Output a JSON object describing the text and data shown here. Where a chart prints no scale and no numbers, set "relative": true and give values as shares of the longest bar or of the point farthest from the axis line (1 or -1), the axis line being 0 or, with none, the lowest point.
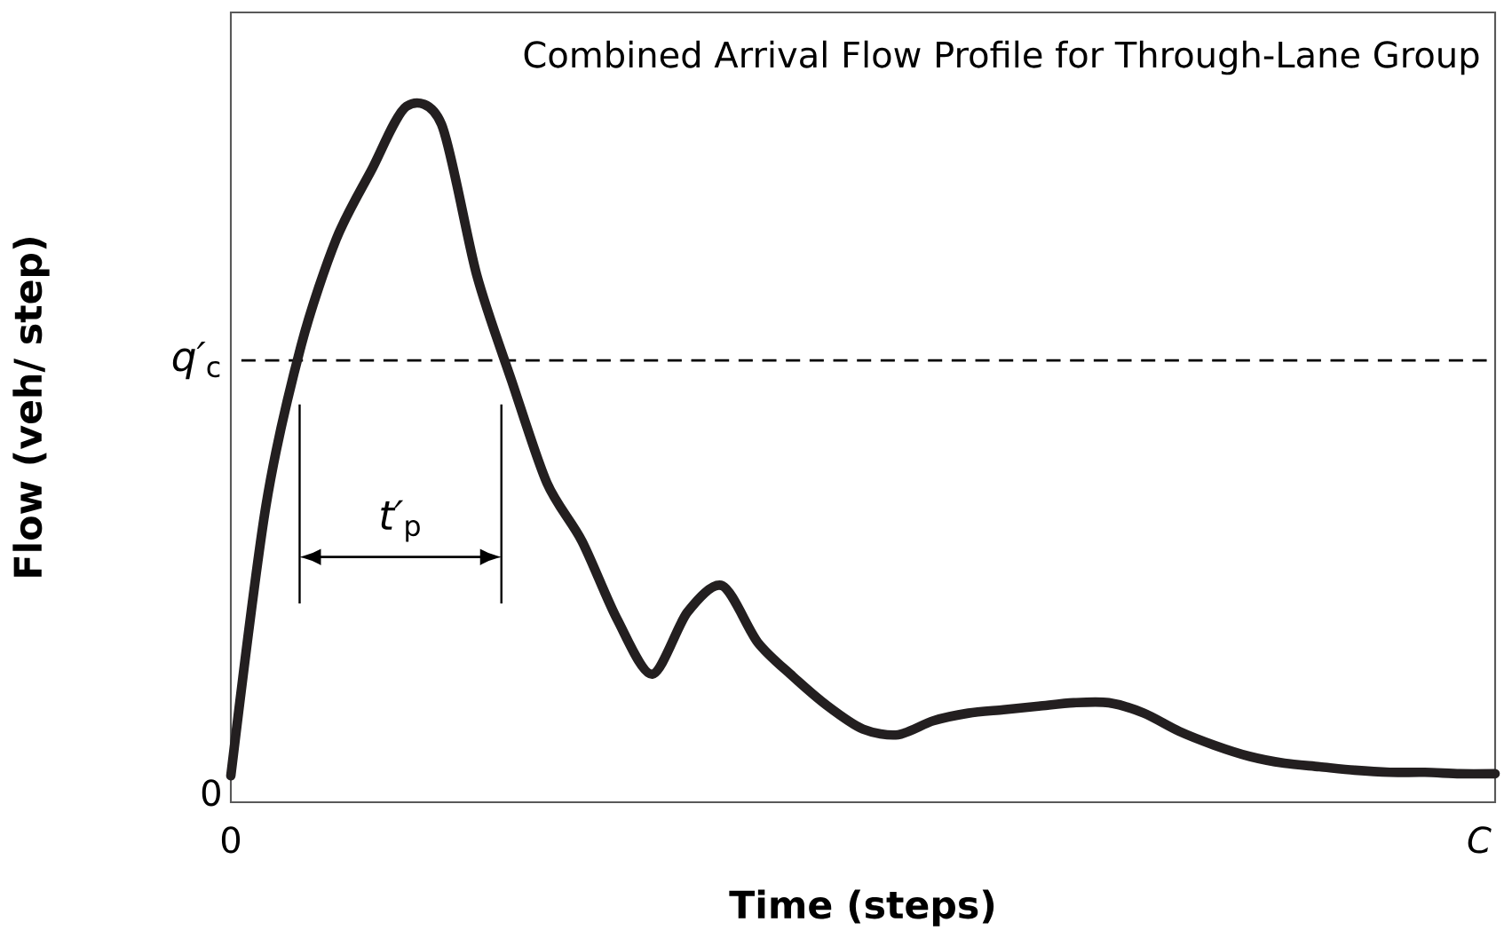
{
  "chart_data": {
    "type": "line",
    "title": "Combined Arrival Flow Profile for Through-Lane Group",
    "xlabel": "Time (steps)",
    "ylabel": "Flow (veh/ step)",
    "relative": true,
    "color": "#231f20",
    "categories": [
      null,
      null,
      null,
      null,
      null,
      null,
      null,
      null,
      null,
      null,
      null,
      null,
      null,
      null,
      null,
      null,
      null,
      null,
      null,
      null,
      null,
      null,
      null,
      null,
      null,
      null,
      null,
      null,
      null,
      null,
      null,
      null,
      null,
      null,
      null,
      null,
      null
    ],
    "values": [
      0.038,
      0.426,
      0.656,
      0.809,
      0.908,
      1.0,
      0.974,
      0.758,
      0.605,
      0.459,
      0.375,
      0.263,
      0.184,
      0.273,
      0.311,
      0.23,
      0.181,
      0.138,
      0.105,
      0.097,
      0.117,
      0.128,
      0.133,
      0.138,
      0.143,
      0.143,
      0.128,
      0.102,
      0.082,
      0.066,
      0.056,
      0.051,
      0.046,
      0.043,
      0.043,
      0.041,
      0.041
    ],
    "marker": "none",
    "line_style": "solid",
    "ref_lines": [
      {
        "axis": "y",
        "value": 0.635,
        "label": "*q′*$_{c}$",
        "line_style": "dashed",
        "color": "#000000"
      }
    ],
    "annotations": [
      "0",
      "0",
      "*C*",
      "*t′*$_{p}$"
    ]
  }
}
